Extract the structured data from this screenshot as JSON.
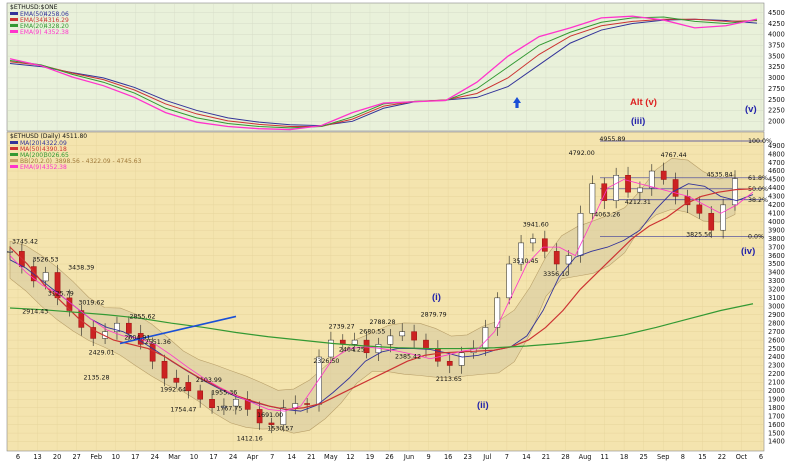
{
  "chart_data": [
    {
      "type": "line",
      "panel": "upper",
      "title": "$ETHUSD:$ONE",
      "ylim": [
        1800,
        4700
      ],
      "yticks": [
        2000,
        2250,
        2500,
        2750,
        3000,
        3250,
        3500,
        3750,
        4000,
        4250,
        4500
      ],
      "legend_placement": "top-left",
      "series": [
        {
          "name": "EMA(50)",
          "value_label": "4258.06",
          "color": "#333399",
          "width": 1.0,
          "values": [
            3330,
            3260,
            3120,
            3000,
            2780,
            2480,
            2250,
            2080,
            1980,
            1920,
            1900,
            2000,
            2300,
            2450,
            2490,
            2550,
            2800,
            3300,
            3800,
            4100,
            4250,
            4330,
            4350,
            4320,
            4260
          ]
        },
        {
          "name": "EMA(34)",
          "value_label": "4316.29",
          "color": "#cc3333",
          "width": 1.0,
          "values": [
            3370,
            3290,
            3110,
            2960,
            2720,
            2400,
            2170,
            2010,
            1930,
            1880,
            1880,
            2050,
            2350,
            2460,
            2490,
            2640,
            3000,
            3540,
            3960,
            4200,
            4300,
            4350,
            4350,
            4300,
            4316
          ]
        },
        {
          "name": "EMA(20)",
          "value_label": "4328.20",
          "color": "#339933",
          "width": 1.0,
          "values": [
            3400,
            3300,
            3080,
            2900,
            2650,
            2300,
            2080,
            1950,
            1880,
            1850,
            1880,
            2100,
            2400,
            2460,
            2480,
            2750,
            3250,
            3750,
            4050,
            4280,
            4380,
            4400,
            4300,
            4250,
            4328
          ]
        },
        {
          "name": "EMA(9)",
          "value_label": "4352.38",
          "color": "#ff33cc",
          "width": 1.3,
          "values": [
            3440,
            3280,
            3020,
            2820,
            2550,
            2200,
            1980,
            1880,
            1830,
            1810,
            1900,
            2200,
            2420,
            2450,
            2480,
            2900,
            3500,
            3950,
            4150,
            4380,
            4420,
            4330,
            4150,
            4200,
            4352
          ]
        }
      ]
    },
    {
      "type": "line",
      "panel": "lower",
      "title": "$ETHUSD (Daily) 4511.80",
      "ylim": [
        1300,
        5050
      ],
      "yticks": [
        1400,
        1500,
        1600,
        1700,
        1800,
        1900,
        2000,
        2100,
        2200,
        2300,
        2400,
        2500,
        2600,
        2700,
        2800,
        2900,
        3000,
        3100,
        3200,
        3300,
        3400,
        3500,
        3600,
        3700,
        3800,
        3900,
        4000,
        4100,
        4200,
        4300,
        4400,
        4500,
        4600,
        4700,
        4800,
        4900
      ],
      "xlabels": [
        "6",
        "13",
        "20",
        "27",
        "Feb",
        "10",
        "17",
        "24",
        "Mar",
        "10",
        "17",
        "24",
        "Apr",
        "7",
        "14",
        "21",
        "May",
        "12",
        "19",
        "26",
        "Jun",
        "9",
        "16",
        "23",
        "Jul",
        "7",
        "14",
        "21",
        "28",
        "Aug",
        "11",
        "18",
        "25",
        "Sep",
        "8",
        "15",
        "22",
        "Oct",
        "6"
      ],
      "legend_placement": "top-left",
      "close": [
        3650,
        3470,
        3300,
        3400,
        3100,
        2950,
        2750,
        2620,
        2700,
        2800,
        2680,
        2550,
        2350,
        2150,
        2100,
        2000,
        1900,
        1800,
        1820,
        1900,
        1780,
        1620,
        1600,
        1800,
        1850,
        1840,
        2400,
        2600,
        2550,
        2600,
        2450,
        2550,
        2650,
        2700,
        2600,
        2500,
        2350,
        2300,
        2450,
        2500,
        2750,
        3100,
        3500,
        3750,
        3800,
        3650,
        3500,
        3600,
        4100,
        4450,
        4250,
        4550,
        4350,
        4400,
        4600,
        4500,
        4300,
        4200,
        4100,
        3900,
        4200,
        4511
      ],
      "series": [
        {
          "name": "MA(20)",
          "value_label": "4322.09",
          "color": "#333399",
          "width": 0.9,
          "values": [
            3550,
            3450,
            3300,
            3150,
            3000,
            2850,
            2750,
            2700,
            2600,
            2480,
            2350,
            2230,
            2120,
            2020,
            1930,
            1870,
            1820,
            1780,
            1760,
            1830,
            1980,
            2150,
            2350,
            2460,
            2500,
            2500,
            2490,
            2450,
            2400,
            2420,
            2480,
            2520,
            2650,
            2950,
            3350,
            3580,
            3650,
            3700,
            3780,
            3900,
            4150,
            4350,
            4450,
            4420,
            4300,
            4250,
            4322
          ]
        },
        {
          "name": "MA(50)",
          "value_label": "4390.18",
          "color": "#cc3333",
          "width": 1.2,
          "values": [
            3700,
            3500,
            3250,
            3050,
            2850,
            2700,
            2600,
            2550,
            2500,
            2400,
            2270,
            2150,
            2050,
            1950,
            1880,
            1820,
            1780,
            1800,
            1850,
            1950,
            2050,
            2150,
            2250,
            2350,
            2420,
            2450,
            2460,
            2470,
            2480,
            2520,
            2600,
            2750,
            2950,
            3200,
            3400,
            3600,
            3800,
            3950,
            4050,
            4200,
            4300,
            4350,
            4380,
            4390
          ]
        },
        {
          "name": "MA(200)",
          "value_label": "3026.65",
          "color": "#339933",
          "width": 1.2,
          "values": [
            2980,
            2960,
            2930,
            2900,
            2860,
            2800,
            2750,
            2690,
            2640,
            2600,
            2560,
            2530,
            2510,
            2500,
            2500,
            2510,
            2530,
            2560,
            2600,
            2660,
            2750,
            2850,
            2950,
            3030
          ]
        },
        {
          "name": "BB(20,2.0)",
          "value_label": "3898.56 - 4322.09 - 4745.63",
          "color": "#c9a46a",
          "width": 0.6,
          "values": []
        },
        {
          "name": "EMA(9)",
          "value_label": "4352.38",
          "color": "#ff33cc",
          "width": 0.8,
          "values": [
            3600,
            3400,
            3250,
            3150,
            3000,
            2850,
            2720,
            2650,
            2620,
            2550,
            2420,
            2280,
            2150,
            2040,
            1940,
            1860,
            1780,
            1760,
            1820,
            2100,
            2380,
            2500,
            2520,
            2500,
            2470,
            2430,
            2380,
            2420,
            2470,
            2500,
            2700,
            3100,
            3500,
            3700,
            3700,
            3600,
            4000,
            4400,
            4500,
            4450,
            4400,
            4350,
            4300,
            4200,
            4100,
            4200,
            4352
          ]
        }
      ],
      "annotations": [
        {
          "text": "3745.42",
          "x": 0,
          "y": 3745
        },
        {
          "text": "3526.53",
          "x": 4,
          "y": 3527
        },
        {
          "text": "3438.39",
          "x": 11,
          "y": 3438
        },
        {
          "text": "3125.79",
          "x": 7,
          "y": 3126
        },
        {
          "text": "2914.43",
          "x": 2,
          "y": 2914
        },
        {
          "text": "3019.62",
          "x": 13,
          "y": 3020
        },
        {
          "text": "2855.62",
          "x": 23,
          "y": 2856
        },
        {
          "text": "2551.36",
          "x": 26,
          "y": 2551
        },
        {
          "text": "2604.91",
          "x": 22,
          "y": 2605
        },
        {
          "text": "2429.01",
          "x": 15,
          "y": 2429
        },
        {
          "text": "2135.28",
          "x": 14,
          "y": 2135
        },
        {
          "text": "2103.99",
          "x": 36,
          "y": 2104
        },
        {
          "text": "1992.64",
          "x": 29,
          "y": 1993
        },
        {
          "text": "1955.36",
          "x": 39,
          "y": 1955
        },
        {
          "text": "1754.47",
          "x": 31,
          "y": 1754
        },
        {
          "text": "1767.75",
          "x": 40,
          "y": 1768
        },
        {
          "text": "1691.00",
          "x": 48,
          "y": 1691
        },
        {
          "text": "1412.16",
          "x": 44,
          "y": 1412
        },
        {
          "text": "1530.57",
          "x": 50,
          "y": 1531
        },
        {
          "text": "2739.27",
          "x": 62,
          "y": 2739
        },
        {
          "text": "2788.28",
          "x": 70,
          "y": 2788
        },
        {
          "text": "2680.55",
          "x": 68,
          "y": 2681
        },
        {
          "text": "2879.79",
          "x": 80,
          "y": 2880
        },
        {
          "text": "2464.25",
          "x": 64,
          "y": 2464
        },
        {
          "text": "2326.50",
          "x": 59,
          "y": 2327
        },
        {
          "text": "2385.42",
          "x": 75,
          "y": 2385
        },
        {
          "text": "2113.65",
          "x": 83,
          "y": 2114
        },
        {
          "text": "3941.60",
          "x": 100,
          "y": 3942
        },
        {
          "text": "3510.45",
          "x": 98,
          "y": 3510
        },
        {
          "text": "3356.10",
          "x": 104,
          "y": 3356
        },
        {
          "text": "4792.00",
          "x": 109,
          "y": 4792
        },
        {
          "text": "4955.89",
          "x": 115,
          "y": 4956
        },
        {
          "text": "4063.26",
          "x": 114,
          "y": 4063
        },
        {
          "text": "4212.31",
          "x": 120,
          "y": 4212
        },
        {
          "text": "4767.44",
          "x": 127,
          "y": 4767
        },
        {
          "text": "4535.84",
          "x": 136,
          "y": 4536
        },
        {
          "text": "3825.56",
          "x": 132,
          "y": 3826
        }
      ],
      "wave_labels": [
        {
          "text": "(i)",
          "color": "#2222aa"
        },
        {
          "text": "(ii)",
          "color": "#2222aa"
        },
        {
          "text": "(iii)",
          "color": "#2222aa"
        },
        {
          "text": "(iv)",
          "color": "#2222aa"
        },
        {
          "text": "(v)",
          "color": "#2222aa"
        },
        {
          "text": "Alt (v)",
          "color": "#dd2222"
        }
      ],
      "fib_levels": [
        "100.0%",
        "61.8%",
        "50.0%",
        "38.2%",
        "0.0%"
      ],
      "fib_values": [
        4955,
        4520,
        4390,
        4260,
        3825
      ]
    }
  ]
}
